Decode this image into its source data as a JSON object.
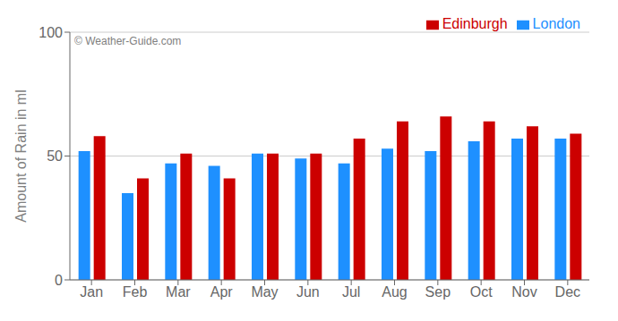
{
  "chart_data": {
    "type": "bar",
    "categories": [
      "Jan",
      "Feb",
      "Mar",
      "Apr",
      "May",
      "Jun",
      "Jul",
      "Aug",
      "Sep",
      "Oct",
      "Nov",
      "Dec"
    ],
    "series": [
      {
        "name": "London",
        "color": "#1E90FF",
        "values": [
          52,
          35,
          47,
          46,
          51,
          49,
          47,
          53,
          52,
          56,
          57,
          57
        ]
      },
      {
        "name": "Edinburgh",
        "color": "#CC0000",
        "values": [
          58,
          41,
          51,
          41,
          51,
          51,
          57,
          64,
          66,
          64,
          62,
          59
        ]
      }
    ],
    "ylabel": "Amount of Rain in ml",
    "annotation": "© Weather-Guide.com",
    "ylim": [
      0,
      100
    ],
    "yticks": [
      0,
      50,
      100
    ],
    "grid": true,
    "legend": "upper right"
  }
}
